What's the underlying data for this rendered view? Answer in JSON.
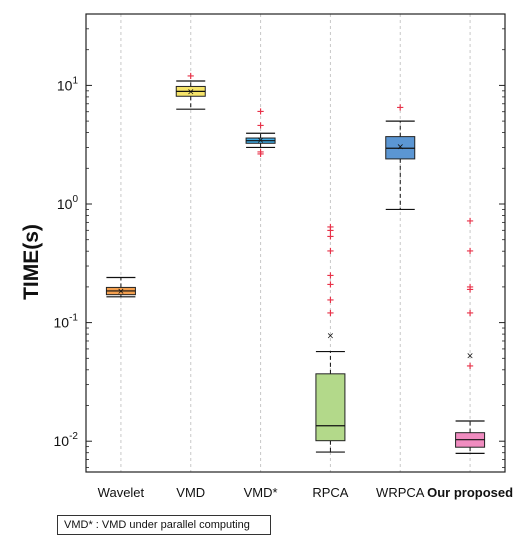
{
  "chart_data": {
    "type": "box",
    "ylabel": "TIME(s)",
    "yscale": "log",
    "ylim": [
      0.0055,
      40
    ],
    "yticks": [
      {
        "value": 0.01,
        "base": "10",
        "exp": "-2"
      },
      {
        "value": 0.1,
        "base": "10",
        "exp": "-1"
      },
      {
        "value": 1,
        "base": "10",
        "exp": "0"
      },
      {
        "value": 10,
        "base": "10",
        "exp": "1"
      }
    ],
    "grid": "vertical dashed",
    "categories": [
      "Wavelet",
      "VMD",
      "VMD*",
      "RPCA",
      "WRPCA",
      "Our proposed"
    ],
    "boxes": [
      {
        "name": "Wavelet",
        "color": "#f4a04f",
        "whisker_low": 0.165,
        "q1": 0.172,
        "median": 0.185,
        "q3": 0.198,
        "whisker_high": 0.24,
        "mean": 0.185,
        "outliers": []
      },
      {
        "name": "VMD",
        "color": "#f6e46a",
        "whisker_low": 6.3,
        "q1": 8.1,
        "median": 8.9,
        "q3": 9.8,
        "whisker_high": 10.9,
        "mean": 8.9,
        "outliers": [
          12.0
        ]
      },
      {
        "name": "VMD*",
        "color": "#41a9e0",
        "whisker_low": 3.0,
        "q1": 3.25,
        "median": 3.42,
        "q3": 3.6,
        "whisker_high": 3.95,
        "mean": 3.45,
        "outliers": [
          2.65,
          2.75,
          4.6,
          6.0
        ]
      },
      {
        "name": "RPCA",
        "color": "#b3d98a",
        "whisker_low": 0.0081,
        "q1": 0.0101,
        "median": 0.0135,
        "q3": 0.037,
        "whisker_high": 0.057,
        "mean": 0.078,
        "outliers": [
          0.12,
          0.155,
          0.21,
          0.25,
          0.4,
          0.53,
          0.6,
          0.64
        ]
      },
      {
        "name": "WRPCA",
        "color": "#5b96d3",
        "whisker_low": 0.9,
        "q1": 2.4,
        "median": 2.95,
        "q3": 3.7,
        "whisker_high": 5.0,
        "mean": 3.05,
        "outliers": [
          6.5
        ]
      },
      {
        "name": "Our proposed",
        "color": "#f08cc0",
        "whisker_low": 0.0079,
        "q1": 0.0089,
        "median": 0.0103,
        "q3": 0.0118,
        "whisker_high": 0.0148,
        "mean": 0.053,
        "outliers": [
          0.043,
          0.12,
          0.19,
          0.2,
          0.4,
          0.72
        ]
      }
    ]
  },
  "note": "VMD* : VMD under parallel computing"
}
